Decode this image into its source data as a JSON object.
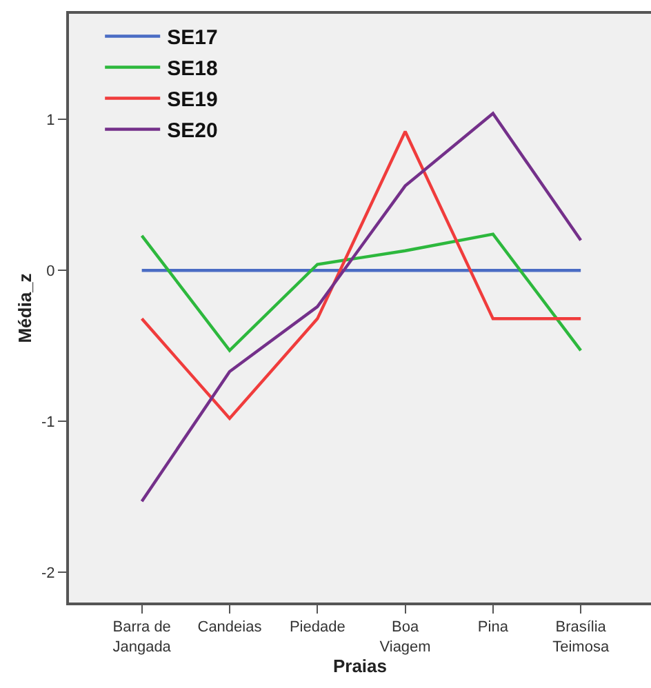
{
  "chart_data": {
    "type": "line",
    "xlabel": "Praias",
    "ylabel": "Média_z",
    "categories": [
      "Barra de\nJangada",
      "Candeias",
      "Piedade",
      "Boa\nViagem",
      "Pina",
      "Brasília\nTeimosa"
    ],
    "series": [
      {
        "name": "SE17",
        "color": "#4a6cc4",
        "values": [
          0,
          0,
          0,
          0,
          0,
          0
        ]
      },
      {
        "name": "SE18",
        "color": "#2db83d",
        "values": [
          0.23,
          -0.53,
          0.04,
          0.13,
          0.24,
          -0.53
        ]
      },
      {
        "name": "SE19",
        "color": "#f03c3c",
        "values": [
          -0.32,
          -0.98,
          -0.32,
          0.92,
          -0.32,
          -0.32
        ]
      },
      {
        "name": "SE20",
        "color": "#74308a",
        "values": [
          -1.53,
          -0.67,
          -0.24,
          0.56,
          1.04,
          0.2
        ]
      }
    ],
    "ylim": [
      -2.2,
      1.7
    ],
    "yticks": [
      -2,
      -1,
      0,
      1
    ],
    "grid": false,
    "legend": "top left",
    "marker": "none",
    "line_style": "solid"
  }
}
